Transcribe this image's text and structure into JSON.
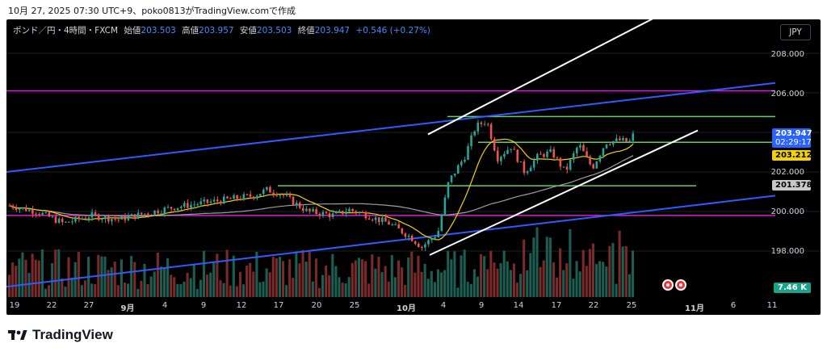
{
  "header": {
    "timestamp": "10月 27, 2025 07:30 UTC+9、poko0813がTradingView.comで作成"
  },
  "symbol_info": {
    "name": "ポンド／円・4時間・FXCM",
    "open_label": "始値",
    "open_value": "203.503",
    "high_label": "高値",
    "high_value": "203.957",
    "low_label": "安値",
    "low_value": "203.503",
    "close_label": "終値",
    "close_value": "203.947",
    "change": "+0.546 (+0.27%)"
  },
  "currency_button": "JPY",
  "y_axis": {
    "ticks": [
      "208.000",
      "206.000",
      "202.000",
      "200.000",
      "198.000"
    ],
    "range": [
      197.0,
      209.5
    ]
  },
  "price_tags": {
    "last": "203.947",
    "countdown": "02:29:17",
    "ma_fast": "203.212",
    "ma_slow": "201.378",
    "volume": "7.46 K"
  },
  "x_axis": {
    "ticks": [
      "19",
      "22",
      "27",
      "9月",
      "4",
      "9",
      "12",
      "17",
      "20",
      "25",
      "10月",
      "4",
      "9",
      "14",
      "17",
      "22",
      "25",
      "11月",
      "6",
      "11"
    ],
    "bold_ticks": [
      "9月",
      "10月",
      "11月"
    ]
  },
  "levels": {
    "magenta_upper": 206.1,
    "magenta_lower": 199.8,
    "green_top": 204.8,
    "green_mid": 203.5,
    "green_low": 201.3
  },
  "colors": {
    "background": "#000000",
    "magenta": "#d61fd6",
    "blue_line": "#2f5bff",
    "green_line": "#66cc66",
    "channel": "#ffffff",
    "candle_up": "#26a69a",
    "candle_down": "#ef5350",
    "ma_fast": "#f5d300",
    "ma_slow": "#9e9e9e"
  },
  "brand": {
    "name": "TradingView"
  }
}
